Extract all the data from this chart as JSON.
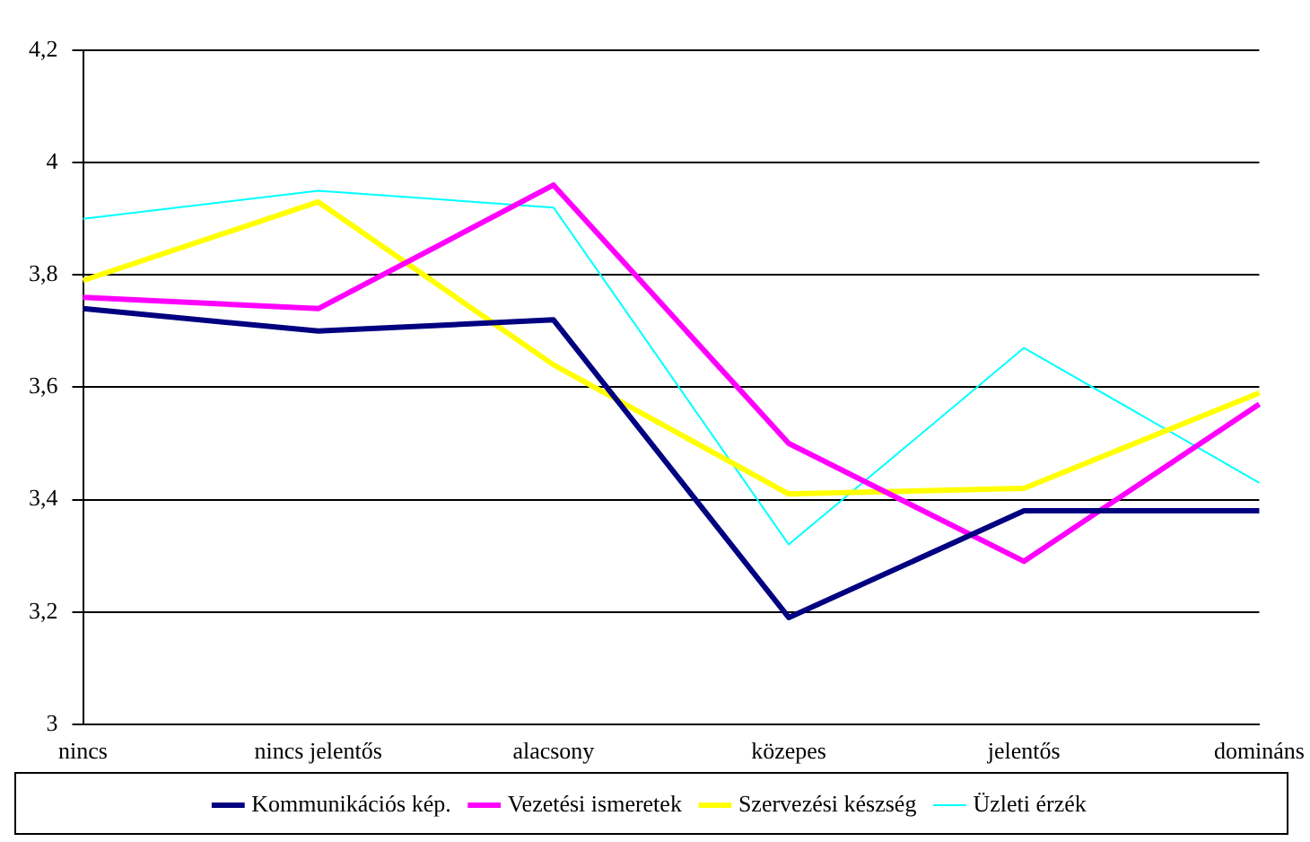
{
  "chart_data": {
    "type": "line",
    "categories": [
      "nincs",
      "nincs jelentős",
      "alacsony",
      "közepes",
      "jelentős",
      "domináns"
    ],
    "series": [
      {
        "name": "Kommunikációs kép.",
        "color": "#000080",
        "values": [
          3.74,
          3.7,
          3.72,
          3.19,
          3.38,
          3.38
        ]
      },
      {
        "name": "Vezetési ismeretek",
        "color": "#ff00ff",
        "values": [
          3.76,
          3.74,
          3.96,
          3.5,
          3.29,
          3.57
        ]
      },
      {
        "name": "Szervezési készség",
        "color": "#ffff00",
        "values": [
          3.79,
          3.93,
          3.64,
          3.41,
          3.42,
          3.59
        ]
      },
      {
        "name": "Üzleti érzék",
        "color": "#00ffff",
        "values": [
          3.9,
          3.95,
          3.92,
          3.32,
          3.67,
          3.43
        ]
      }
    ],
    "ylim": [
      3,
      4.2
    ],
    "yticks": [
      {
        "value": 3,
        "label": "3"
      },
      {
        "value": 3.2,
        "label": "3,2"
      },
      {
        "value": 3.4,
        "label": "3,4"
      },
      {
        "value": 3.6,
        "label": "3,6"
      },
      {
        "value": 3.8,
        "label": "3,8"
      },
      {
        "value": 4,
        "label": "4"
      },
      {
        "value": 4.2,
        "label": "4,2"
      }
    ],
    "grid": "y",
    "legend": "bottom",
    "marker": "none",
    "line_style": "solid"
  }
}
